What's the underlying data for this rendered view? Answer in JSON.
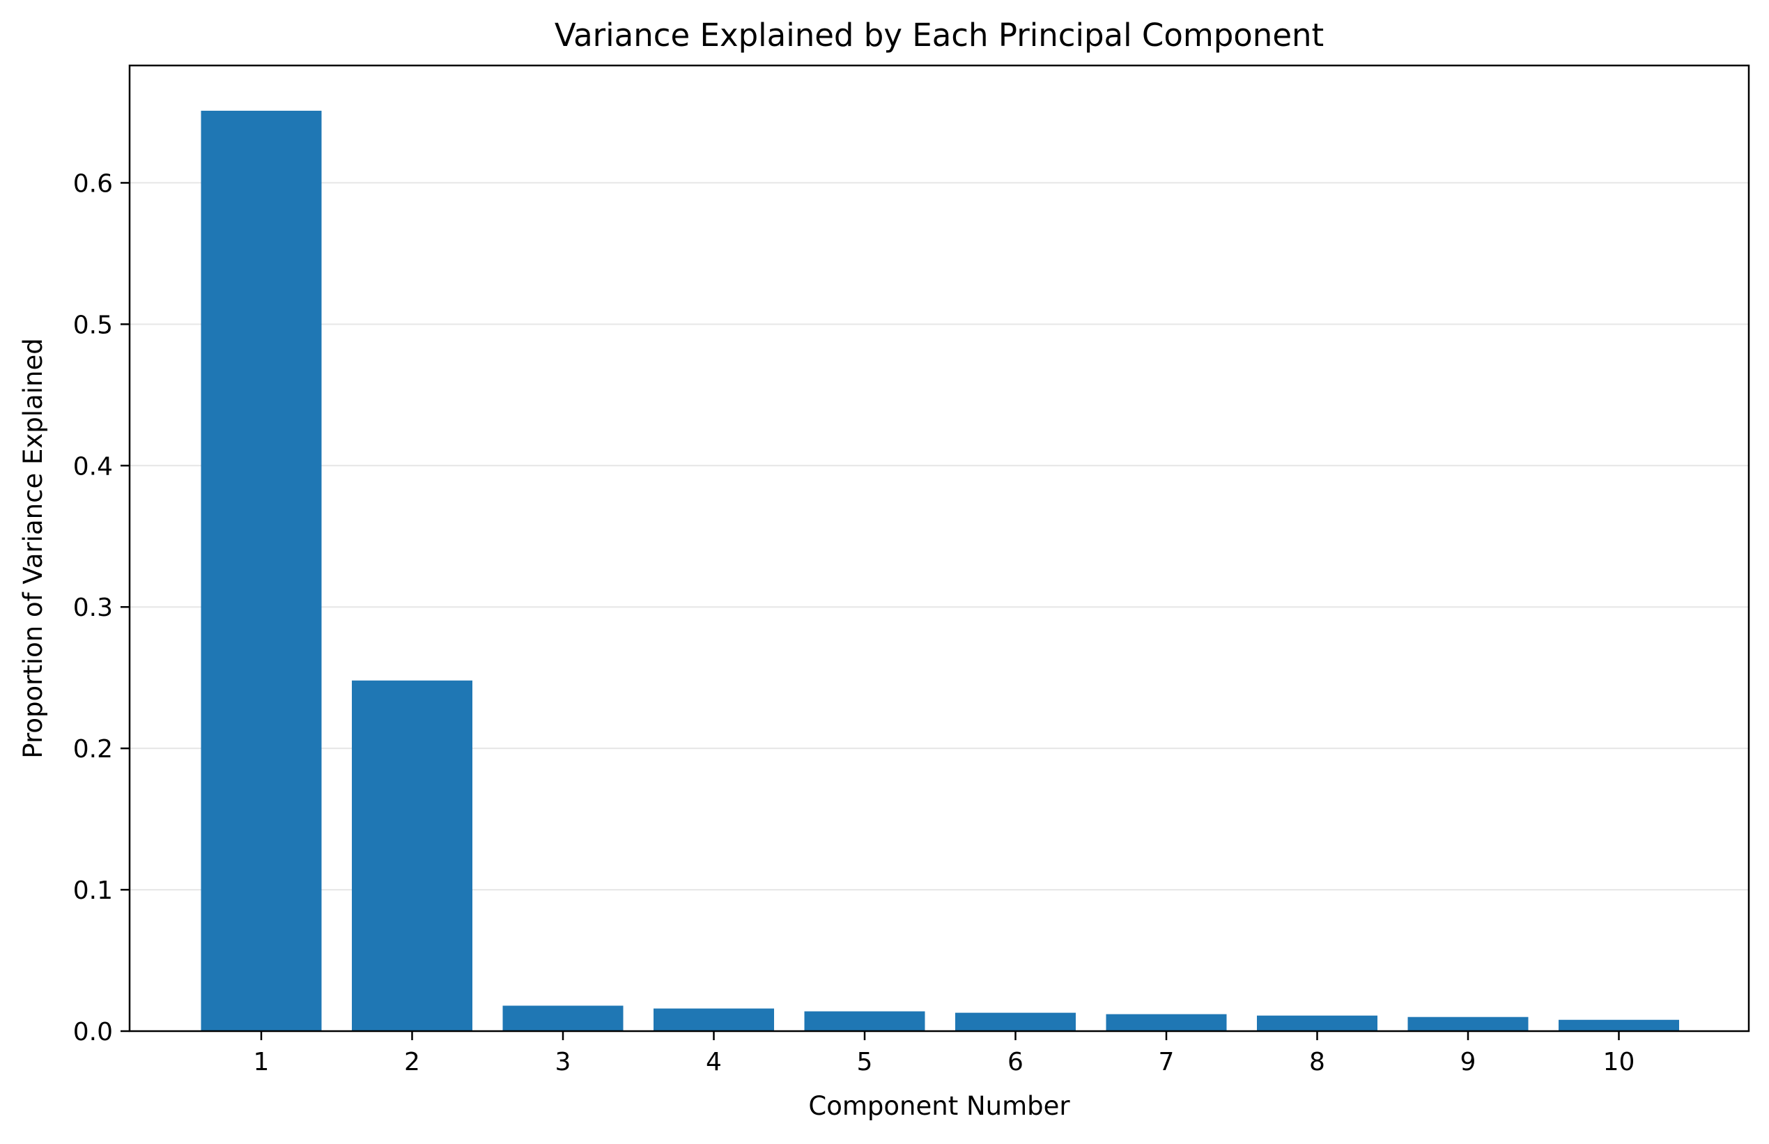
{
  "chart_data": {
    "type": "bar",
    "title": "Variance Explained by Each Principal Component",
    "xlabel": "Component Number",
    "ylabel": "Proportion of Variance Explained",
    "categories": [
      "1",
      "2",
      "3",
      "4",
      "5",
      "6",
      "7",
      "8",
      "9",
      "10"
    ],
    "values": [
      0.651,
      0.248,
      0.018,
      0.016,
      0.014,
      0.013,
      0.012,
      0.011,
      0.01,
      0.008
    ],
    "ylim": [
      0,
      0.683
    ],
    "yticks": [
      0.0,
      0.1,
      0.2,
      0.3,
      0.4,
      0.5,
      0.6
    ],
    "ytick_labels": [
      "0.0",
      "0.1",
      "0.2",
      "0.3",
      "0.4",
      "0.5",
      "0.6"
    ],
    "grid": {
      "y": true,
      "x": false
    },
    "legend": "none",
    "colors": {
      "bar": "#1f77b4",
      "grid": "#e6e6e6",
      "axis": "#000000"
    }
  }
}
